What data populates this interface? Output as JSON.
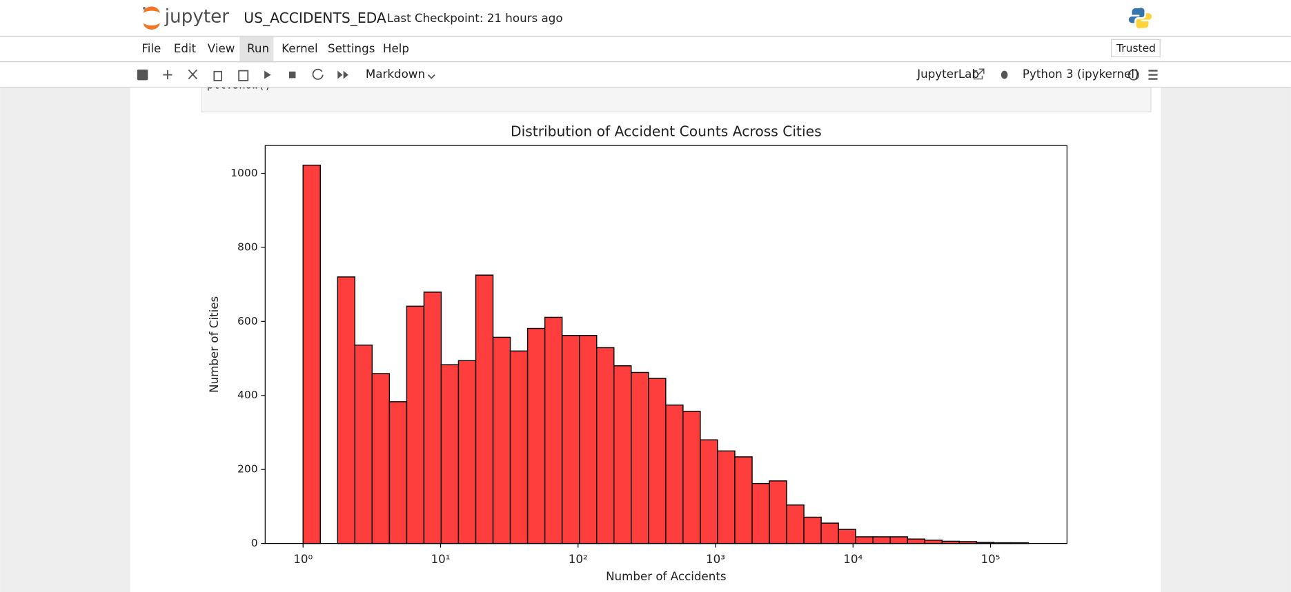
{
  "header": {
    "logo_text": "jupyter",
    "notebook_name": "US_ACCIDENTS_EDA",
    "checkpoint": "Last Checkpoint: 21 hours ago",
    "trusted": "Trusted"
  },
  "menu": [
    "File",
    "Edit",
    "View",
    "Run",
    "Kernel",
    "Settings",
    "Help"
  ],
  "toolbar": {
    "cell_type": "Markdown",
    "jupyterlab": "JupyterLab",
    "kernel": "Python 3 (ipykernel)"
  },
  "code_fragment": "plt.show()",
  "chart_data": {
    "type": "histogram",
    "title": "Distribution of Accident Counts Across Cities",
    "x_label": "Number of Accidents",
    "y_label": "Number of Cities",
    "log_x": true,
    "color": "#fe3d3d",
    "edge_color": "#000000",
    "bins": [
      1,
      1.335,
      1.783,
      2.381,
      3.18,
      4.247,
      5.671,
      7.573,
      10.11,
      13.5,
      18.03,
      24.08,
      32.16,
      42.94,
      57.35,
      76.58,
      102.3,
      136.6,
      182.4,
      243.5,
      325.2,
      434.3,
      580,
      774.5,
      1034,
      1381,
      1845,
      2463,
      3290,
      4393,
      5867,
      7834,
      10462,
      13971,
      18657,
      24914,
      33271,
      44430,
      59332,
      79233,
      105808,
      141296,
      188687
    ],
    "counts": [
      1022,
      0,
      720,
      536,
      459,
      383,
      641,
      679,
      483,
      494,
      725,
      557,
      520,
      581,
      611,
      562,
      562,
      529,
      480,
      462,
      446,
      374,
      357,
      280,
      250,
      234,
      162,
      169,
      104,
      71,
      55,
      38,
      18,
      18,
      18,
      12,
      9,
      6,
      5,
      3,
      2,
      2
    ],
    "xlim": [
      0.53,
      360000
    ],
    "ylim": [
      0,
      1075
    ],
    "xticks": [
      {
        "value": 1,
        "label": "10⁰"
      },
      {
        "value": 10,
        "label": "10¹"
      },
      {
        "value": 100,
        "label": "10²"
      },
      {
        "value": 1000,
        "label": "10³"
      },
      {
        "value": 10000,
        "label": "10⁴"
      },
      {
        "value": 100000,
        "label": "10⁵"
      }
    ],
    "yticks": [
      0,
      200,
      400,
      600,
      800,
      1000
    ]
  }
}
